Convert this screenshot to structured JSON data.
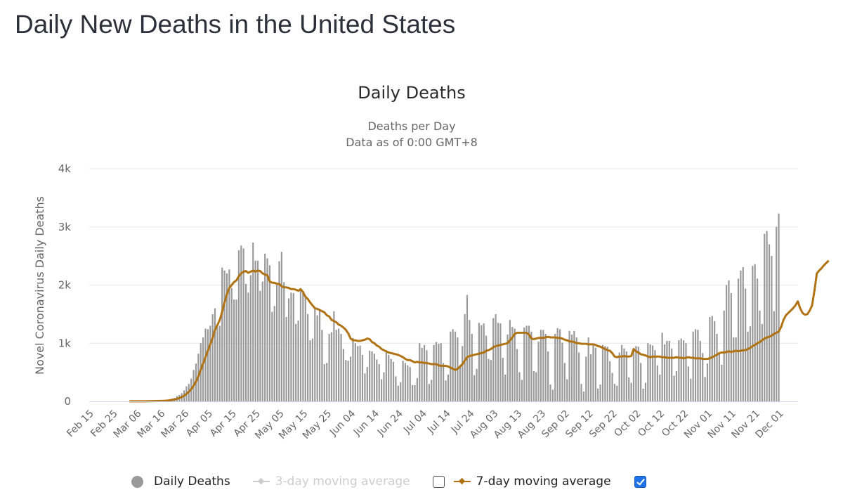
{
  "page": {
    "title": "Daily New Deaths in the United States"
  },
  "legend": {
    "items": [
      {
        "label": "Daily Deaths",
        "icon": "circle-icon",
        "color": "#999999",
        "visible": true
      },
      {
        "label": "3-day moving average",
        "icon": "diamond-line-icon",
        "color": "#cccccc",
        "visible": false,
        "checked": false
      },
      {
        "label": "7-day moving average",
        "icon": "diamond-line-icon",
        "color": "#b07314",
        "visible": true,
        "checked": true
      }
    ]
  },
  "chart_data": {
    "type": "bar",
    "title": "Daily Deaths",
    "subtitle": [
      "Deaths per Day",
      "Data as of 0:00 GMT+8"
    ],
    "xlabel": "",
    "ylabel": "Novel Coronavirus Daily Deaths",
    "ylim": [
      0,
      4000
    ],
    "y_ticks": [
      0,
      1000,
      2000,
      3000,
      4000
    ],
    "y_tick_labels": [
      "0",
      "1k",
      "2k",
      "3k",
      "4k"
    ],
    "grid": true,
    "legend_position": "bottom",
    "x_start": "Feb 15",
    "x_tick_labels": [
      "Feb 15",
      "Feb 25",
      "Mar 06",
      "Mar 16",
      "Mar 26",
      "Apr 05",
      "Apr 15",
      "Apr 25",
      "May 05",
      "May 15",
      "May 25",
      "Jun 04",
      "Jun 14",
      "Jun 24",
      "Jul 04",
      "Jul 14",
      "Jul 24",
      "Aug 03",
      "Aug 13",
      "Aug 23",
      "Sep 02",
      "Sep 12",
      "Sep 22",
      "Oct 02",
      "Oct 12",
      "Oct 22",
      "Nov 01",
      "Nov 11",
      "Nov 21",
      "Dec 01"
    ],
    "x_tick_interval_days": 10,
    "colors": {
      "bars": "#999999",
      "ma7": "#b07314",
      "grid": "#e6e6e6",
      "axis": "#ccd6eb"
    },
    "series": [
      {
        "name": "Daily Deaths",
        "type": "bar",
        "values": [
          0,
          0,
          0,
          0,
          0,
          0,
          0,
          0,
          0,
          0,
          0,
          0,
          0,
          0,
          0,
          0,
          1,
          1,
          2,
          2,
          1,
          2,
          4,
          3,
          4,
          5,
          4,
          8,
          10,
          9,
          12,
          21,
          28,
          40,
          50,
          60,
          90,
          110,
          140,
          190,
          260,
          300,
          390,
          540,
          650,
          820,
          1000,
          1100,
          1250,
          1240,
          1300,
          1500,
          1600,
          1280,
          1300,
          2300,
          2250,
          2200,
          2270,
          1950,
          1750,
          1750,
          2600,
          2680,
          2630,
          2020,
          1870,
          2170,
          2730,
          2420,
          2420,
          1900,
          2060,
          2540,
          2460,
          2340,
          1540,
          1640,
          2000,
          2410,
          2570,
          2050,
          1450,
          1770,
          1870,
          1860,
          1330,
          1390,
          1910,
          1860,
          1780,
          1500,
          1050,
          1080,
          1590,
          1480,
          1590,
          1230,
          640,
          660,
          1160,
          1190,
          1550,
          1230,
          1250,
          1160,
          900,
          710,
          700,
          770,
          1090,
          1000,
          950,
          960,
          800,
          480,
          590,
          870,
          860,
          820,
          720,
          640,
          380,
          500,
          860,
          800,
          730,
          680,
          430,
          270,
          330,
          700,
          660,
          620,
          590,
          280,
          280,
          400,
          1000,
          920,
          970,
          880,
          300,
          370,
          970,
          1020,
          990,
          1000,
          660,
          360,
          460,
          1200,
          1240,
          1200,
          1100,
          600,
          950,
          1500,
          1830,
          1400,
          1160,
          450,
          560,
          1350,
          1310,
          1340,
          1130,
          730,
          710,
          1430,
          1500,
          1350,
          1340,
          750,
          460,
          1150,
          1400,
          1280,
          1250,
          900,
          500,
          370,
          1270,
          1300,
          1300,
          1200,
          520,
          500,
          1030,
          1230,
          1230,
          1160,
          860,
          290,
          200,
          1160,
          1260,
          1240,
          1010,
          660,
          380,
          1210,
          1150,
          1210,
          1100,
          840,
          300,
          170,
          770,
          1100,
          810,
          960,
          920,
          220,
          290,
          970,
          950,
          940,
          690,
          490,
          300,
          270,
          840,
          970,
          910,
          860,
          410,
          320,
          880,
          950,
          940,
          660,
          220,
          320,
          1000,
          980,
          960,
          880,
          620,
          460,
          1180,
          980,
          1040,
          1040,
          910,
          440,
          520,
          1050,
          1080,
          1050,
          1000,
          600,
          390,
          1200,
          1240,
          1230,
          1040,
          830,
          420,
          650,
          1450,
          1470,
          1380,
          1160,
          830,
          630,
          1560,
          2000,
          2080,
          1860,
          1100,
          1100,
          2110,
          2250,
          2310,
          1940,
          1200,
          1290,
          2330,
          2360,
          2110,
          1560,
          1330,
          2880,
          2930,
          2700,
          2500,
          1550,
          3000,
          3230
        ]
      },
      {
        "name": "7-day moving average",
        "type": "line",
        "values": [
          0,
          0,
          0,
          0,
          0,
          0,
          0,
          0,
          0,
          0,
          0,
          0,
          0,
          0,
          0,
          0,
          1,
          1,
          1,
          1,
          2,
          2,
          2,
          2,
          3,
          3,
          4,
          5,
          6,
          7,
          8,
          11,
          13,
          18,
          24,
          32,
          43,
          57,
          74,
          96,
          130,
          165,
          210,
          270,
          340,
          430,
          540,
          650,
          760,
          870,
          980,
          1090,
          1230,
          1310,
          1400,
          1540,
          1700,
          1840,
          1950,
          2000,
          2050,
          2080,
          2150,
          2200,
          2230,
          2240,
          2210,
          2230,
          2250,
          2230,
          2250,
          2240,
          2200,
          2180,
          2170,
          2060,
          2040,
          2040,
          2020,
          2020,
          1980,
          1960,
          1960,
          1950,
          1930,
          1930,
          1920,
          1900,
          1930,
          1880,
          1800,
          1760,
          1700,
          1650,
          1600,
          1590,
          1570,
          1550,
          1530,
          1480,
          1460,
          1400,
          1380,
          1360,
          1320,
          1300,
          1270,
          1230,
          1170,
          1080,
          1050,
          1050,
          1040,
          1040,
          1050,
          1060,
          1080,
          1070,
          1020,
          1000,
          960,
          940,
          900,
          880,
          860,
          840,
          830,
          820,
          810,
          800,
          780,
          760,
          730,
          710,
          710,
          690,
          670,
          680,
          670,
          670,
          660,
          660,
          650,
          640,
          640,
          640,
          620,
          610,
          610,
          610,
          600,
          580,
          560,
          540,
          560,
          600,
          640,
          700,
          760,
          780,
          790,
          800,
          810,
          820,
          830,
          840,
          870,
          880,
          900,
          930,
          950,
          960,
          970,
          980,
          990,
          1000,
          1050,
          1100,
          1160,
          1180,
          1180,
          1180,
          1180,
          1180,
          1150,
          1080,
          1070,
          1080,
          1090,
          1090,
          1090,
          1100,
          1110,
          1100,
          1100,
          1100,
          1090,
          1090,
          1080,
          1060,
          1050,
          1030,
          1030,
          1020,
          1000,
          1000,
          990,
          990,
          990,
          980,
          980,
          980,
          970,
          950,
          940,
          920,
          900,
          880,
          870,
          830,
          770,
          760,
          770,
          770,
          780,
          770,
          770,
          780,
          900,
          860,
          840,
          810,
          800,
          790,
          770,
          760,
          770,
          770,
          770,
          770,
          760,
          760,
          750,
          750,
          750,
          750,
          760,
          750,
          750,
          740,
          750,
          760,
          750,
          750,
          740,
          740,
          740,
          730,
          730,
          730,
          740,
          760,
          780,
          800,
          830,
          840,
          840,
          850,
          860,
          850,
          860,
          870,
          860,
          870,
          880,
          880,
          900,
          920,
          950,
          970,
          1000,
          1020,
          1050,
          1080,
          1100,
          1110,
          1130,
          1160,
          1180,
          1200,
          1280,
          1400,
          1480,
          1520,
          1560,
          1600,
          1650,
          1720,
          1600,
          1520,
          1490,
          1500,
          1560,
          1650,
          1900,
          2200,
          2250,
          2290,
          2340,
          2380,
          2420
        ]
      }
    ]
  }
}
